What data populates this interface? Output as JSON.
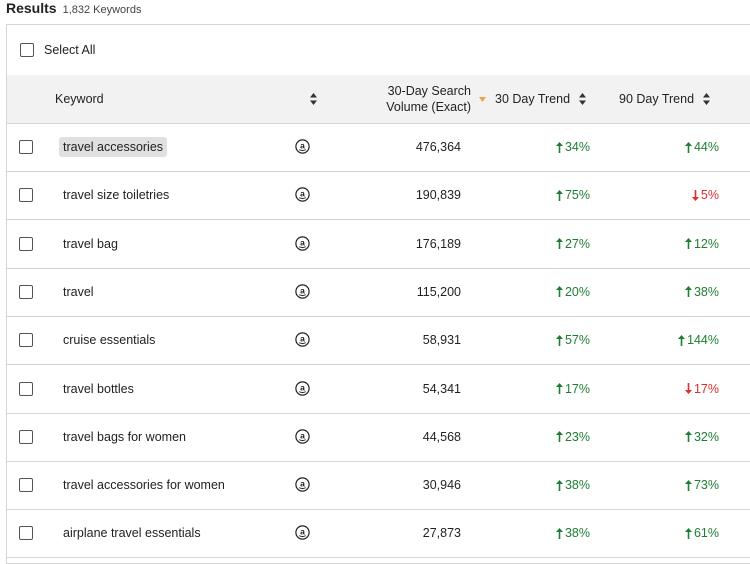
{
  "results": {
    "title": "Results",
    "count": "1,832 Keywords"
  },
  "select_all": {
    "label": "Select All"
  },
  "columns": {
    "keyword": "Keyword",
    "volume_line1": "30-Day Search",
    "volume_line2": "Volume (Exact)",
    "trend30": "30 Day Trend",
    "trend90": "90 Day Trend"
  },
  "colors": {
    "up": "#1e7e34",
    "down": "#d9302c",
    "sort_active": "#f0a050"
  },
  "icons": {
    "row_marketplace": "amazon-icon",
    "sort": "sort-icon"
  },
  "rows": [
    {
      "keyword": "travel accessories",
      "volume": "476,364",
      "t30": "34%",
      "t30_dir": "up",
      "t90": "44%",
      "t90_dir": "up",
      "highlight": true
    },
    {
      "keyword": "travel size toiletries",
      "volume": "190,839",
      "t30": "75%",
      "t30_dir": "up",
      "t90": "5%",
      "t90_dir": "down"
    },
    {
      "keyword": "travel bag",
      "volume": "176,189",
      "t30": "27%",
      "t30_dir": "up",
      "t90": "12%",
      "t90_dir": "up"
    },
    {
      "keyword": "travel",
      "volume": "115,200",
      "t30": "20%",
      "t30_dir": "up",
      "t90": "38%",
      "t90_dir": "up"
    },
    {
      "keyword": "cruise essentials",
      "volume": "58,931",
      "t30": "57%",
      "t30_dir": "up",
      "t90": "144%",
      "t90_dir": "up"
    },
    {
      "keyword": "travel bottles",
      "volume": "54,341",
      "t30": "17%",
      "t30_dir": "up",
      "t90": "17%",
      "t90_dir": "down"
    },
    {
      "keyword": "travel bags for women",
      "volume": "44,568",
      "t30": "23%",
      "t30_dir": "up",
      "t90": "32%",
      "t90_dir": "up"
    },
    {
      "keyword": "travel accessories for women",
      "volume": "30,946",
      "t30": "38%",
      "t30_dir": "up",
      "t90": "73%",
      "t90_dir": "up"
    },
    {
      "keyword": "airplane travel essentials",
      "volume": "27,873",
      "t30": "38%",
      "t30_dir": "up",
      "t90": "61%",
      "t90_dir": "up"
    }
  ]
}
